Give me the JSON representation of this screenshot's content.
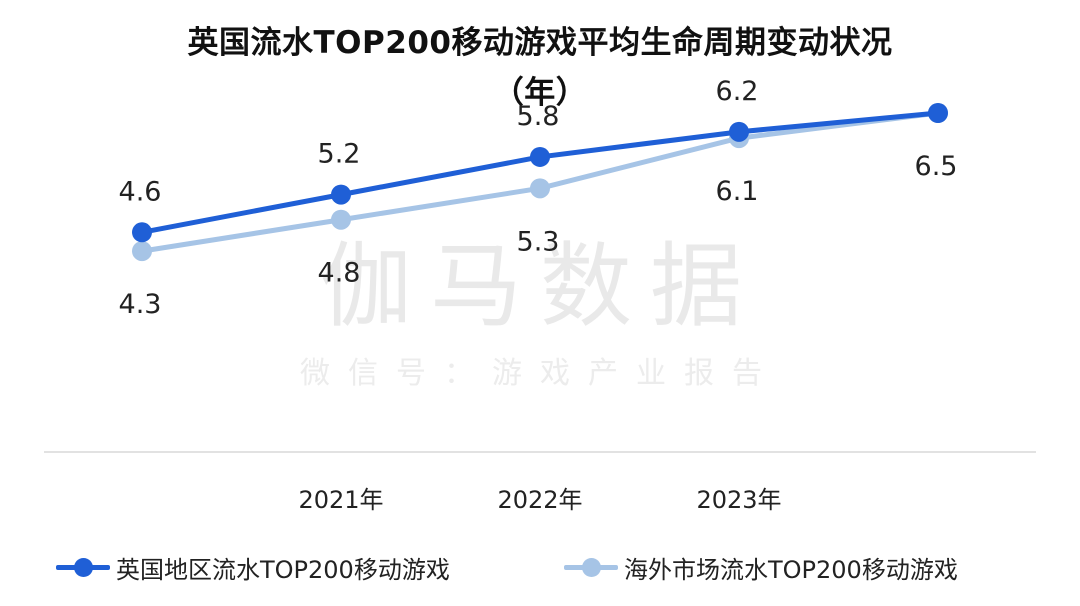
{
  "chart_data": {
    "type": "line",
    "title": "英国流水TOP200移动游戏平均生命周期变动状况",
    "title_unit": "（年）",
    "categories": [
      "",
      "2021年",
      "2022年",
      "2023年",
      ""
    ],
    "series": [
      {
        "name": "英国地区流水TOP200移动游戏",
        "color": "#1f5fd6",
        "values": [
          4.6,
          5.2,
          5.8,
          6.2,
          6.5
        ],
        "labels": [
          "4.6",
          "5.2",
          "5.8",
          "6.2",
          ""
        ]
      },
      {
        "name": "海外市场流水TOP200移动游戏",
        "color": "#a6c4e6",
        "values": [
          4.3,
          4.8,
          5.3,
          6.1,
          6.5
        ],
        "labels": [
          "4.3",
          "4.8",
          "5.3",
          "6.1",
          "6.5"
        ]
      }
    ],
    "ylim": [
      1.1,
      8.3
    ],
    "grid": false,
    "legend": "bottom"
  },
  "watermark": {
    "main": "伽马数据",
    "sub": "微信号：游戏产业报告"
  }
}
